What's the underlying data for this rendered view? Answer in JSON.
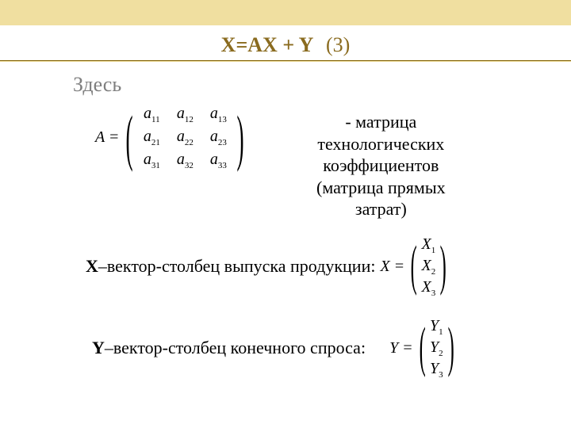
{
  "colors": {
    "topbar": "#f0dfa0",
    "ruleDark": "#806000",
    "ruleLight": "#f0dfa0",
    "title": "#8a6b1f",
    "accent": "#806000",
    "text": "#000000",
    "here": "#7f7f7f",
    "bg": "#ffffff"
  },
  "equation": {
    "text": "X=AX + Y",
    "number": "(3)"
  },
  "hereLabel": "Здесь",
  "matrixA": {
    "lhs": "A =",
    "rows": [
      [
        "a",
        "11",
        "a",
        "12",
        "a",
        "13"
      ],
      [
        "a",
        "21",
        "a",
        "22",
        "a",
        "23"
      ],
      [
        "a",
        "31",
        "a",
        "32",
        "a",
        "33"
      ]
    ],
    "descriptionLines": [
      "- матрица",
      "технологических",
      "коэффициентов",
      "(матрица прямых",
      "затрат)"
    ]
  },
  "lineX": {
    "lead": "X",
    "dash": " – ",
    "tail": "вектор-столбец выпуска продукции:",
    "vectorLhs": "X =",
    "cells": [
      "X",
      "1",
      "X",
      "2",
      "X",
      "3"
    ]
  },
  "lineY": {
    "lead": "Y",
    "dash": " – ",
    "tail": "вектор-столбец конечного спроса:",
    "vectorLhs": "Y =",
    "cells": [
      "Y",
      "1",
      "Y",
      "2",
      "Y",
      "3"
    ]
  }
}
